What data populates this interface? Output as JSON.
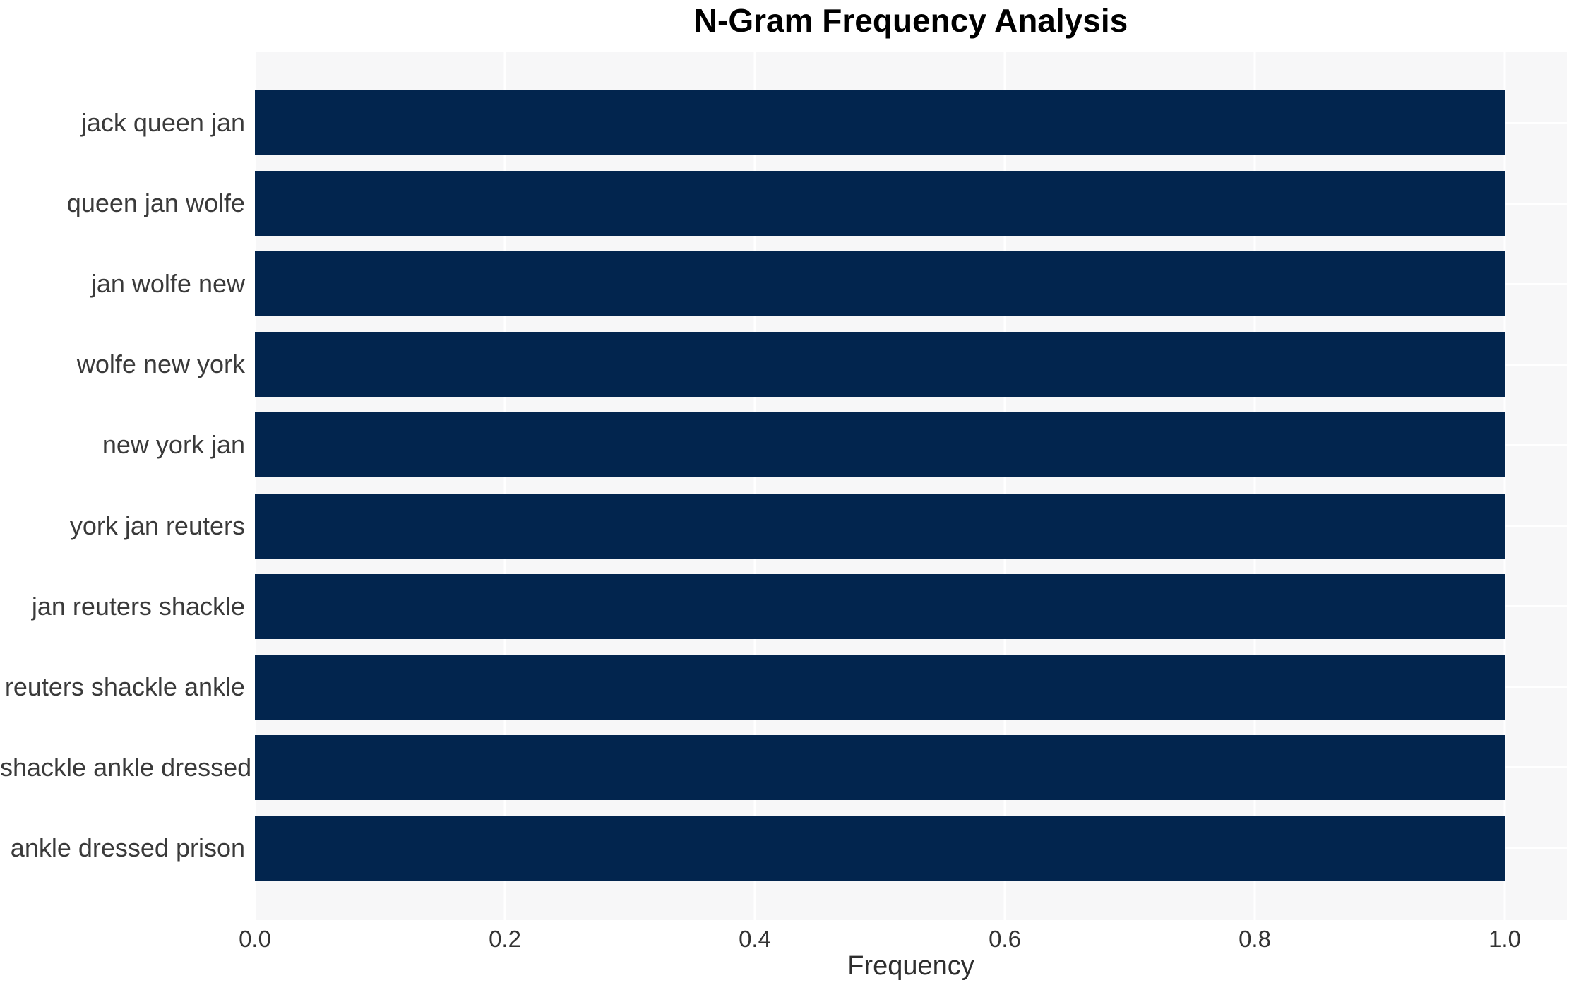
{
  "chart_data": {
    "type": "bar",
    "orientation": "horizontal",
    "title": "N-Gram Frequency Analysis",
    "xlabel": "Frequency",
    "ylabel": "",
    "categories": [
      "jack queen jan",
      "queen jan wolfe",
      "jan wolfe new",
      "wolfe new york",
      "new york jan",
      "york jan reuters",
      "jan reuters shackle",
      "reuters shackle ankle",
      "shackle ankle dressed",
      "ankle dressed prison"
    ],
    "values": [
      1.0,
      1.0,
      1.0,
      1.0,
      1.0,
      1.0,
      1.0,
      1.0,
      1.0,
      1.0
    ],
    "xlim": [
      0,
      1.05
    ],
    "xticks": [
      0.0,
      0.2,
      0.4,
      0.6,
      0.8,
      1.0
    ],
    "xtick_labels": [
      "0.0",
      "0.2",
      "0.4",
      "0.6",
      "0.8",
      "1.0"
    ],
    "grid": true,
    "legend": null,
    "colors": {
      "bar": "#02254e",
      "plot_background": "#f7f7f8",
      "gridline": "#ffffff",
      "figure_background": "#ffffff",
      "tick_text": "#333333",
      "label_text": "#3a3a3a",
      "title_text": "#000000"
    }
  }
}
